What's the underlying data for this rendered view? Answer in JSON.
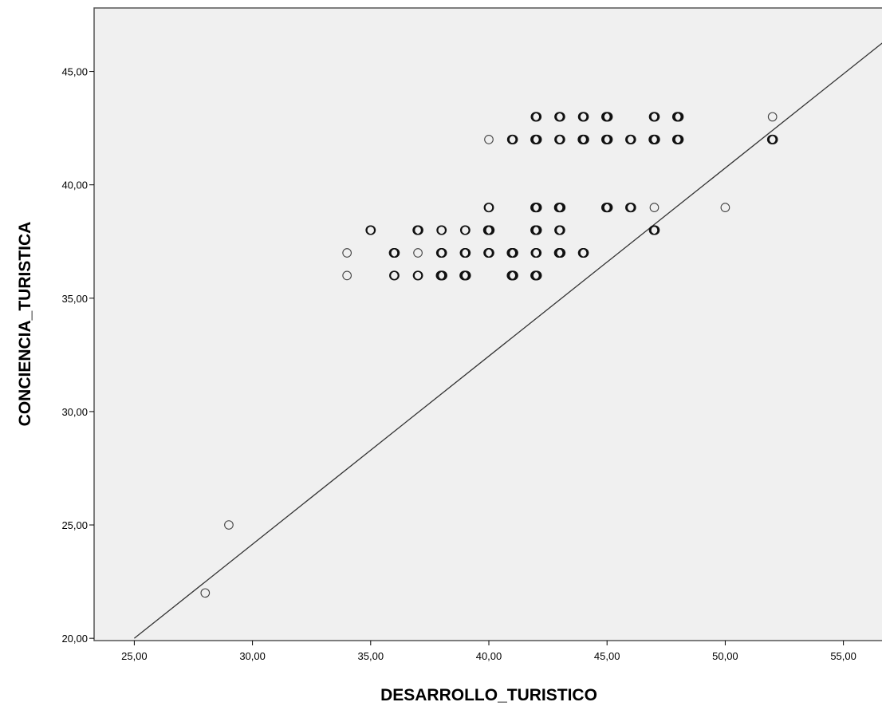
{
  "chart_data": {
    "type": "scatter",
    "xlabel": "DESARROLLO_TURISTICO",
    "ylabel": "CONCIENCIA_TURISTICA",
    "xlim": [
      23.3,
      56.7
    ],
    "ylim": [
      19.9,
      47.8
    ],
    "x_ticks": [
      "25,00",
      "30,00",
      "35,00",
      "40,00",
      "45,00",
      "50,00",
      "55,00"
    ],
    "x_tick_values": [
      25,
      30,
      35,
      40,
      45,
      50,
      55
    ],
    "y_ticks": [
      "20,00",
      "25,00",
      "30,00",
      "35,00",
      "40,00",
      "45,00"
    ],
    "y_tick_values": [
      20,
      25,
      30,
      35,
      40,
      45
    ],
    "grid": false,
    "background_color": "#f0f0f0",
    "marker_color": "#000000",
    "points": [
      {
        "x": 28,
        "y": 22,
        "n": 1
      },
      {
        "x": 29,
        "y": 25,
        "n": 1
      },
      {
        "x": 34,
        "y": 36,
        "n": 1
      },
      {
        "x": 34,
        "y": 37,
        "n": 1
      },
      {
        "x": 35,
        "y": 38,
        "n": 2
      },
      {
        "x": 36,
        "y": 36,
        "n": 2
      },
      {
        "x": 36,
        "y": 37,
        "n": 3
      },
      {
        "x": 37,
        "y": 36,
        "n": 2
      },
      {
        "x": 37,
        "y": 37,
        "n": 1
      },
      {
        "x": 37,
        "y": 38,
        "n": 3
      },
      {
        "x": 38,
        "y": 36,
        "n": 4
      },
      {
        "x": 38,
        "y": 37,
        "n": 3
      },
      {
        "x": 38,
        "y": 38,
        "n": 2
      },
      {
        "x": 39,
        "y": 36,
        "n": 4
      },
      {
        "x": 39,
        "y": 37,
        "n": 3
      },
      {
        "x": 39,
        "y": 38,
        "n": 2
      },
      {
        "x": 40,
        "y": 37,
        "n": 3
      },
      {
        "x": 40,
        "y": 38,
        "n": 4
      },
      {
        "x": 40,
        "y": 39,
        "n": 2
      },
      {
        "x": 40,
        "y": 42,
        "n": 1
      },
      {
        "x": 41,
        "y": 36,
        "n": 4
      },
      {
        "x": 41,
        "y": 37,
        "n": 4
      },
      {
        "x": 41,
        "y": 42,
        "n": 3
      },
      {
        "x": 42,
        "y": 36,
        "n": 4
      },
      {
        "x": 42,
        "y": 37,
        "n": 3
      },
      {
        "x": 42,
        "y": 38,
        "n": 4
      },
      {
        "x": 42,
        "y": 39,
        "n": 4
      },
      {
        "x": 42,
        "y": 42,
        "n": 4
      },
      {
        "x": 42,
        "y": 43,
        "n": 3
      },
      {
        "x": 43,
        "y": 37,
        "n": 4
      },
      {
        "x": 43,
        "y": 38,
        "n": 3
      },
      {
        "x": 43,
        "y": 39,
        "n": 4
      },
      {
        "x": 43,
        "y": 42,
        "n": 3
      },
      {
        "x": 43,
        "y": 43,
        "n": 3
      },
      {
        "x": 44,
        "y": 37,
        "n": 3
      },
      {
        "x": 44,
        "y": 42,
        "n": 4
      },
      {
        "x": 44,
        "y": 43,
        "n": 3
      },
      {
        "x": 45,
        "y": 39,
        "n": 4
      },
      {
        "x": 45,
        "y": 42,
        "n": 4
      },
      {
        "x": 45,
        "y": 43,
        "n": 4
      },
      {
        "x": 46,
        "y": 39,
        "n": 3
      },
      {
        "x": 46,
        "y": 42,
        "n": 3
      },
      {
        "x": 47,
        "y": 38,
        "n": 3
      },
      {
        "x": 47,
        "y": 39,
        "n": 1
      },
      {
        "x": 47,
        "y": 42,
        "n": 4
      },
      {
        "x": 47,
        "y": 43,
        "n": 3
      },
      {
        "x": 48,
        "y": 42,
        "n": 4
      },
      {
        "x": 48,
        "y": 43,
        "n": 4
      },
      {
        "x": 50,
        "y": 39,
        "n": 1
      },
      {
        "x": 52,
        "y": 42,
        "n": 3
      },
      {
        "x": 52,
        "y": 43,
        "n": 1
      }
    ],
    "fit_line": {
      "x": [
        25,
        56.7
      ],
      "y": [
        20,
        46.3
      ]
    }
  }
}
